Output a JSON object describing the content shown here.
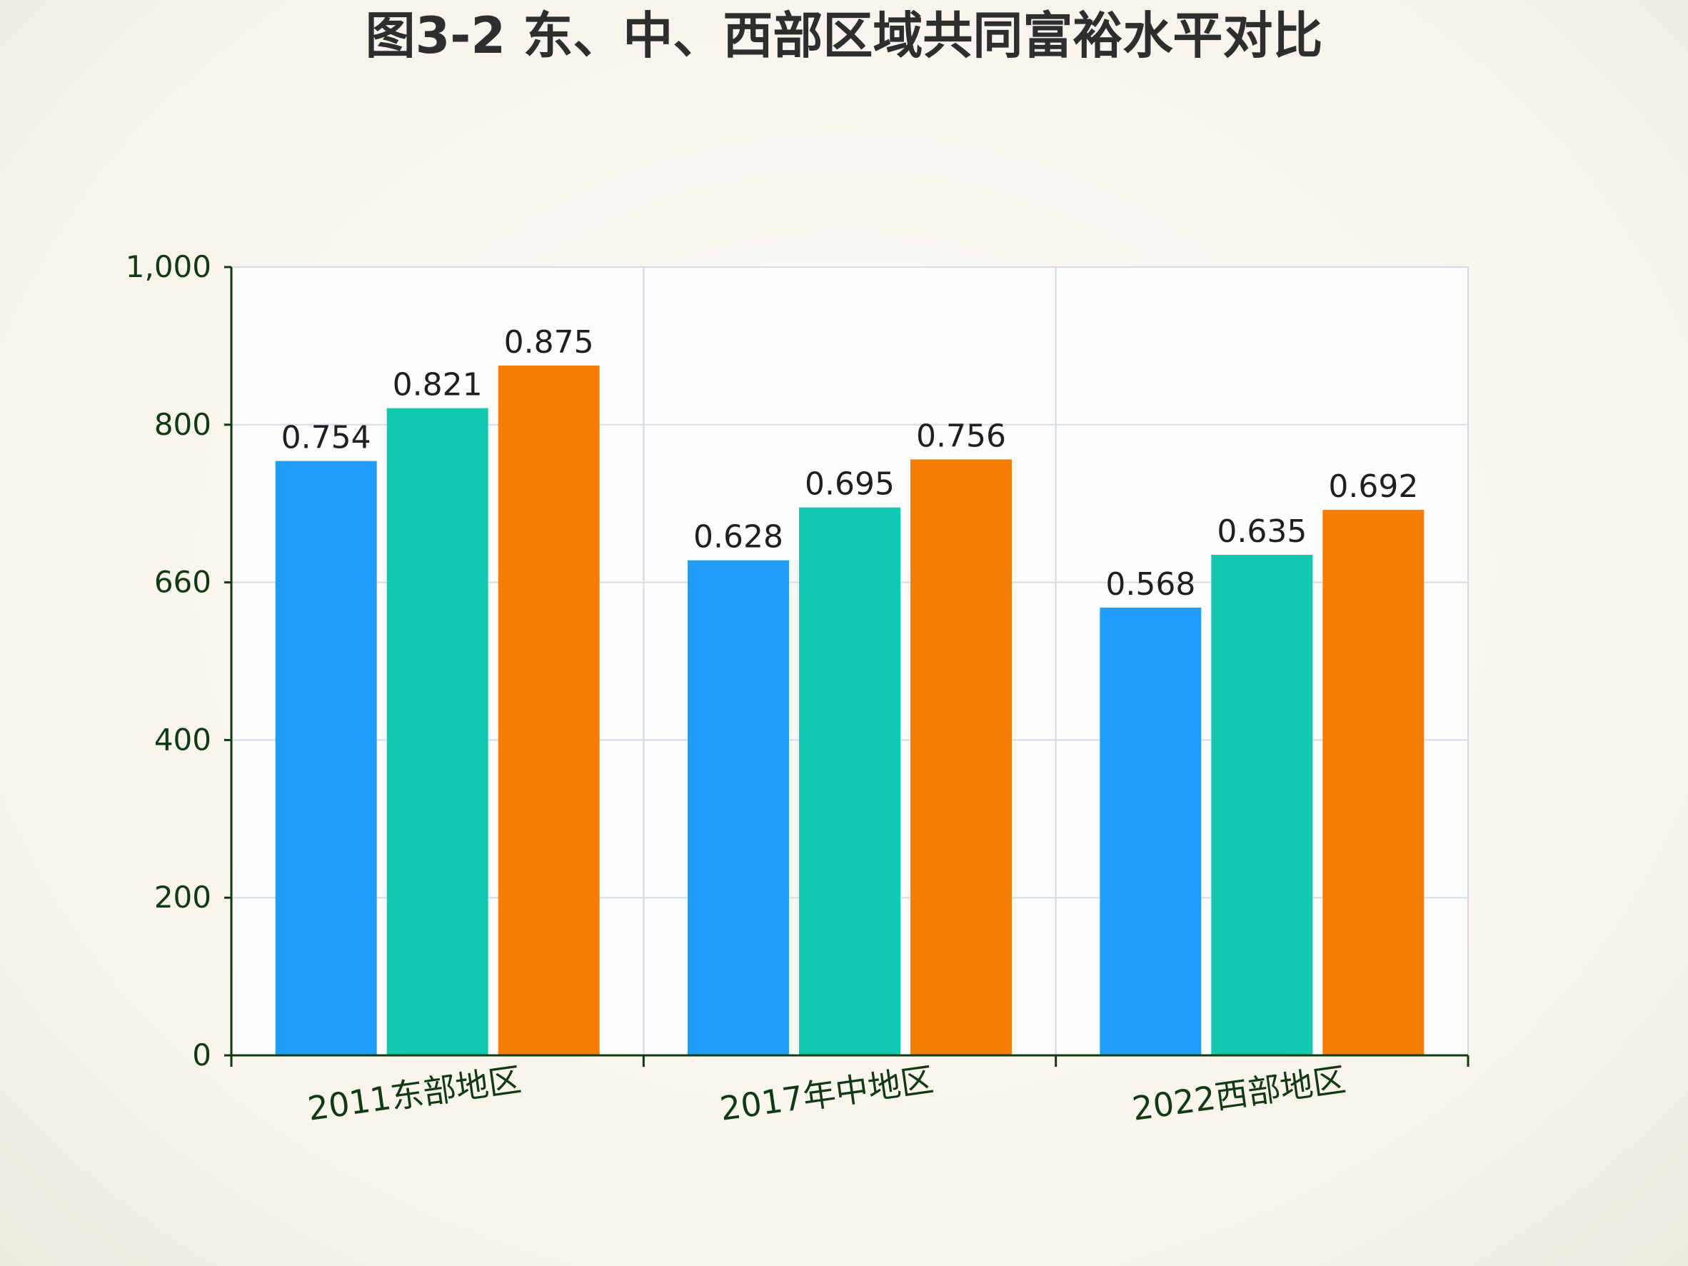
{
  "chart_data": {
    "type": "bar",
    "title": "图3-2 东、中、西部区域共同富裕水平对比",
    "categories": [
      "2011东部地区",
      "2017年中地区",
      "2022西部地区"
    ],
    "series": [
      {
        "color": "#1e9ef8",
        "values": [
          0.754,
          0.628,
          0.568
        ]
      },
      {
        "color": "#12c8b1",
        "values": [
          0.821,
          0.695,
          0.635
        ]
      },
      {
        "color": "#f77d06",
        "values": [
          0.875,
          0.756,
          0.692
        ]
      }
    ],
    "y_tick_labels": [
      "0",
      "200",
      "400",
      "660",
      "800",
      "1,000"
    ],
    "ylim": [
      0,
      1000
    ],
    "grid": true,
    "legend": "none"
  }
}
